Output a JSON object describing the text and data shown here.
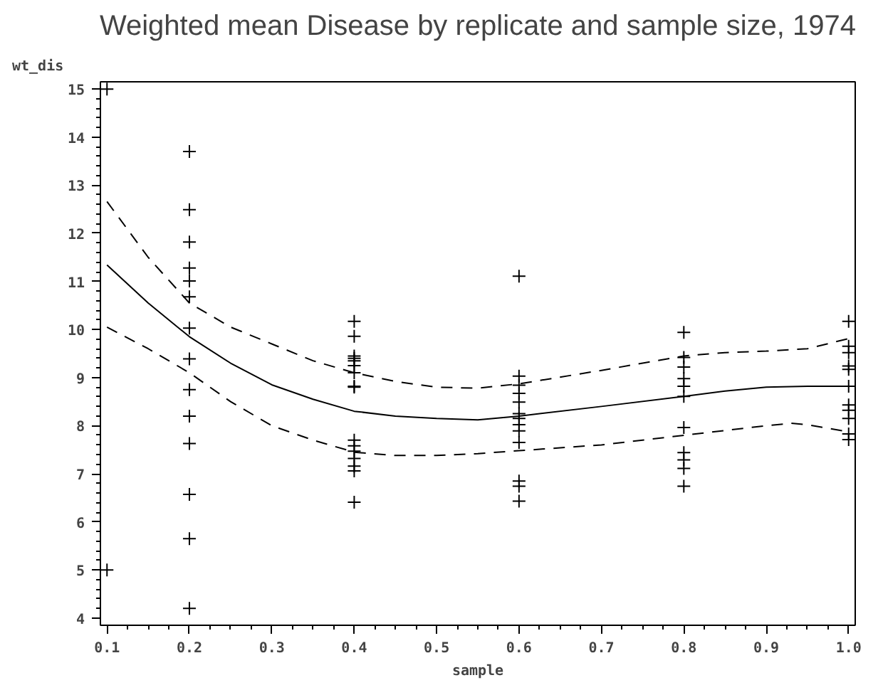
{
  "chart_data": {
    "type": "scatter",
    "title": "Weighted mean Disease by replicate and sample size, 1974",
    "xlabel": "sample",
    "ylabel": "wt_dis",
    "xlim": [
      0.092,
      1.008
    ],
    "ylim": [
      3.85,
      15.15
    ],
    "xticks": [
      {
        "value": 0.1,
        "label": "0.1"
      },
      {
        "value": 0.2,
        "label": "0.2"
      },
      {
        "value": 0.3,
        "label": "0.3"
      },
      {
        "value": 0.4,
        "label": "0.4"
      },
      {
        "value": 0.5,
        "label": "0.5"
      },
      {
        "value": 0.6,
        "label": "0.6"
      },
      {
        "value": 0.7,
        "label": "0.7"
      },
      {
        "value": 0.8,
        "label": "0.8"
      },
      {
        "value": 0.9,
        "label": "0.9"
      },
      {
        "value": 1.0,
        "label": "1.0"
      }
    ],
    "yticks": [
      4,
      5,
      6,
      7,
      8,
      9,
      10,
      11,
      12,
      13,
      14,
      15
    ],
    "grid": false,
    "marker": "cross",
    "series": [
      {
        "color": "#000000",
        "x": [
          0.1,
          0.1,
          0.2,
          0.2,
          0.2,
          0.2,
          0.2,
          0.2,
          0.2,
          0.2,
          0.2,
          0.2,
          0.2,
          0.2,
          0.2,
          0.2,
          0.4,
          0.4,
          0.4,
          0.4,
          0.4,
          0.4,
          0.4,
          0.4,
          0.4,
          0.4,
          0.4,
          0.4,
          0.4,
          0.4,
          0.4,
          0.4,
          0.6,
          0.6,
          0.6,
          0.6,
          0.6,
          0.6,
          0.6,
          0.6,
          0.6,
          0.6,
          0.6,
          0.6,
          0.6,
          0.8,
          0.8,
          0.8,
          0.8,
          0.8,
          0.8,
          0.8,
          0.8,
          0.8,
          0.8,
          0.8,
          1.0,
          1.0,
          1.0,
          1.0,
          1.0,
          1.0,
          1.0,
          1.0,
          1.0,
          1.0,
          1.0
        ],
        "values": [
          15.0,
          5.0,
          13.7,
          12.49,
          11.82,
          11.28,
          11.01,
          10.68,
          10.03,
          9.39,
          8.75,
          8.2,
          7.63,
          6.57,
          5.65,
          4.2,
          10.17,
          9.86,
          9.45,
          9.35,
          9.25,
          9.1,
          8.82,
          8.8,
          7.7,
          7.58,
          7.47,
          7.32,
          7.16,
          7.06,
          6.41,
          9.4,
          11.11,
          9.03,
          8.84,
          8.67,
          8.49,
          8.25,
          8.15,
          8.02,
          7.89,
          7.65,
          6.85,
          6.74,
          6.43,
          9.94,
          9.42,
          9.22,
          8.98,
          8.82,
          8.61,
          7.96,
          7.44,
          7.29,
          7.11,
          6.74,
          10.17,
          9.65,
          9.52,
          9.24,
          9.17,
          8.82,
          8.43,
          8.32,
          8.15,
          7.83,
          7.71
        ]
      },
      {
        "type": "line",
        "color": "#000000",
        "line_style": "solid",
        "marker": "none",
        "x": [
          0.1,
          0.15,
          0.2,
          0.25,
          0.3,
          0.35,
          0.4,
          0.45,
          0.5,
          0.55,
          0.6,
          0.7,
          0.8,
          0.85,
          0.9,
          0.95,
          1.0
        ],
        "values": [
          11.34,
          10.55,
          9.85,
          9.3,
          8.85,
          8.55,
          8.3,
          8.2,
          8.15,
          8.12,
          8.2,
          8.4,
          8.61,
          8.72,
          8.8,
          8.82,
          8.82
        ]
      },
      {
        "type": "line",
        "color": "#000000",
        "line_style": "dashed",
        "marker": "none",
        "x": [
          0.1,
          0.15,
          0.2,
          0.25,
          0.3,
          0.35,
          0.4,
          0.45,
          0.5,
          0.55,
          0.6,
          0.7,
          0.8,
          0.85,
          0.9,
          0.95,
          1.0
        ],
        "values": [
          12.66,
          11.5,
          10.55,
          10.05,
          9.7,
          9.35,
          9.1,
          8.92,
          8.8,
          8.78,
          8.87,
          9.15,
          9.45,
          9.52,
          9.55,
          9.6,
          9.81
        ]
      },
      {
        "type": "line",
        "color": "#000000",
        "line_style": "dashed",
        "marker": "none",
        "x": [
          0.1,
          0.15,
          0.2,
          0.25,
          0.3,
          0.35,
          0.4,
          0.45,
          0.5,
          0.55,
          0.6,
          0.7,
          0.8,
          0.85,
          0.9,
          0.93,
          0.95,
          1.0
        ],
        "values": [
          10.05,
          9.6,
          9.1,
          8.5,
          8.0,
          7.7,
          7.45,
          7.38,
          7.38,
          7.42,
          7.48,
          7.6,
          7.8,
          7.9,
          8.0,
          8.05,
          8.02,
          7.87
        ]
      }
    ]
  }
}
